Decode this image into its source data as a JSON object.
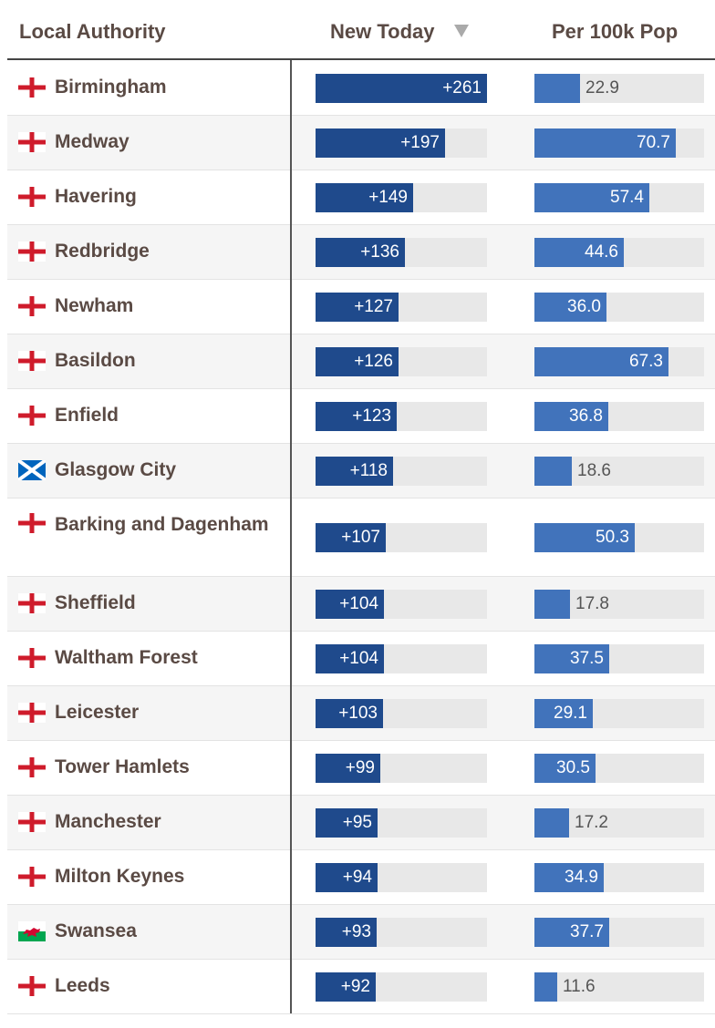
{
  "header": {
    "col_authority": "Local Authority",
    "col_new_today": "New Today",
    "col_per_100k": "Per 100k Pop",
    "sort_icon": "sort-desc-icon"
  },
  "colors": {
    "new_today_bar": "#1f4a8c",
    "per_100k_bar": "#4173bb",
    "track": "#e8e8e8",
    "england_cross": "#cf1b2b",
    "scotland_blue": "#0065bd",
    "wales_green": "#00a650"
  },
  "chart_data": {
    "type": "table",
    "scales": {
      "new_today_max": 261,
      "per_100k_max": 85
    },
    "rows": [
      {
        "authority": "Birmingham",
        "flag": "england",
        "new_today": 261,
        "new_today_label": "+261",
        "per_100k": 22.9,
        "per_100k_label": "22.9"
      },
      {
        "authority": "Medway",
        "flag": "england",
        "new_today": 197,
        "new_today_label": "+197",
        "per_100k": 70.7,
        "per_100k_label": "70.7"
      },
      {
        "authority": "Havering",
        "flag": "england",
        "new_today": 149,
        "new_today_label": "+149",
        "per_100k": 57.4,
        "per_100k_label": "57.4"
      },
      {
        "authority": "Redbridge",
        "flag": "england",
        "new_today": 136,
        "new_today_label": "+136",
        "per_100k": 44.6,
        "per_100k_label": "44.6"
      },
      {
        "authority": "Newham",
        "flag": "england",
        "new_today": 127,
        "new_today_label": "+127",
        "per_100k": 36.0,
        "per_100k_label": "36.0"
      },
      {
        "authority": "Basildon",
        "flag": "england",
        "new_today": 126,
        "new_today_label": "+126",
        "per_100k": 67.3,
        "per_100k_label": "67.3"
      },
      {
        "authority": "Enfield",
        "flag": "england",
        "new_today": 123,
        "new_today_label": "+123",
        "per_100k": 36.8,
        "per_100k_label": "36.8"
      },
      {
        "authority": "Glasgow City",
        "flag": "scotland",
        "new_today": 118,
        "new_today_label": "+118",
        "per_100k": 18.6,
        "per_100k_label": "18.6"
      },
      {
        "authority": "Barking and Dagenham",
        "flag": "england",
        "new_today": 107,
        "new_today_label": "+107",
        "per_100k": 50.3,
        "per_100k_label": "50.3"
      },
      {
        "authority": "Sheffield",
        "flag": "england",
        "new_today": 104,
        "new_today_label": "+104",
        "per_100k": 17.8,
        "per_100k_label": "17.8"
      },
      {
        "authority": "Waltham Forest",
        "flag": "england",
        "new_today": 104,
        "new_today_label": "+104",
        "per_100k": 37.5,
        "per_100k_label": "37.5"
      },
      {
        "authority": "Leicester",
        "flag": "england",
        "new_today": 103,
        "new_today_label": "+103",
        "per_100k": 29.1,
        "per_100k_label": "29.1"
      },
      {
        "authority": "Tower Hamlets",
        "flag": "england",
        "new_today": 99,
        "new_today_label": "+99",
        "per_100k": 30.5,
        "per_100k_label": "30.5"
      },
      {
        "authority": "Manchester",
        "flag": "england",
        "new_today": 95,
        "new_today_label": "+95",
        "per_100k": 17.2,
        "per_100k_label": "17.2"
      },
      {
        "authority": "Milton Keynes",
        "flag": "england",
        "new_today": 94,
        "new_today_label": "+94",
        "per_100k": 34.9,
        "per_100k_label": "34.9"
      },
      {
        "authority": "Swansea",
        "flag": "wales",
        "new_today": 93,
        "new_today_label": "+93",
        "per_100k": 37.7,
        "per_100k_label": "37.7"
      },
      {
        "authority": "Leeds",
        "flag": "england",
        "new_today": 92,
        "new_today_label": "+92",
        "per_100k": 11.6,
        "per_100k_label": "11.6"
      }
    ]
  }
}
